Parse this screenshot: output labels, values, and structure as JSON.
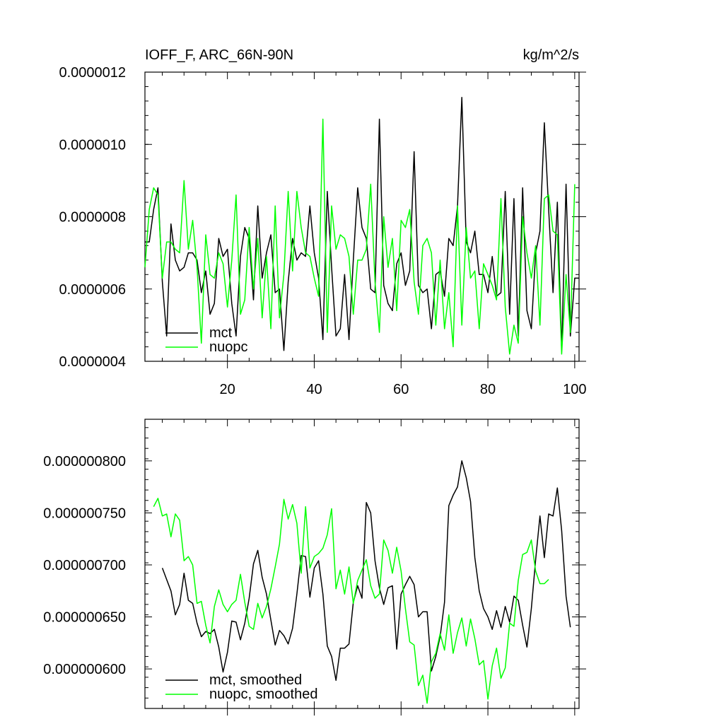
{
  "chart_data": [
    {
      "type": "line",
      "title": "IOFF_F, ARC_66N-90N",
      "units": "kg/m^2/s",
      "xlim": [
        1,
        101
      ],
      "ylim": [
        4e-07,
        1.2e-06
      ],
      "xticks": [
        20,
        40,
        60,
        80,
        100
      ],
      "yticks": [
        4e-07,
        6e-07,
        8e-07,
        1e-06,
        1.2e-06
      ],
      "ytick_labels": [
        "0.0000004",
        "0.0000006",
        "0.0000008",
        "0.0000010",
        "0.0000012"
      ],
      "xtick_labels": [
        "20",
        "40",
        "60",
        "80",
        "100"
      ],
      "legend": "bottom-left",
      "series": [
        {
          "name": "mct",
          "color": "#000000",
          "x_start": 1,
          "values": [
            7.3e-07,
            7.3e-07,
            8.2e-07,
            8.8e-07,
            6.2e-07,
            4.7e-07,
            7.8e-07,
            6.8e-07,
            6.5e-07,
            6.6e-07,
            7e-07,
            7e-07,
            6.8e-07,
            5.9e-07,
            6.5e-07,
            5.3e-07,
            5.6e-07,
            7.4e-07,
            6.9e-07,
            7.1e-07,
            5.6e-07,
            4.7e-07,
            6.9e-07,
            7.7e-07,
            7.4e-07,
            5.7e-07,
            8.3e-07,
            6.3e-07,
            7e-07,
            7.5e-07,
            5.9e-07,
            6e-07,
            4.3e-07,
            6.2e-07,
            7.4e-07,
            6.8e-07,
            7e-07,
            6.9e-07,
            8.3e-07,
            7e-07,
            6.3e-07,
            4.6e-07,
            8.7e-07,
            6.6e-07,
            4.7e-07,
            4.9e-07,
            6.4e-07,
            4.6e-07,
            6.8e-07,
            8.8e-07,
            7.7e-07,
            7.4e-07,
            6e-07,
            5.9e-07,
            1.07e-06,
            6.1e-07,
            5.6e-07,
            5.4e-07,
            6.7e-07,
            7e-07,
            6.1e-07,
            6.5e-07,
            9.8e-07,
            6.1e-07,
            5.9e-07,
            6e-07,
            4.9e-07,
            6.4e-07,
            6.5e-07,
            5.8e-07,
            7.4e-07,
            7.2e-07,
            8.3e-07,
            1.13e-06,
            7.3e-07,
            7e-07,
            7.6e-07,
            6.4e-07,
            6.4e-07,
            5.9e-07,
            6.9e-07,
            5.8e-07,
            5.9e-07,
            8.7e-07,
            5.3e-07,
            8.5e-07,
            4.7e-07,
            8.8e-07,
            5.4e-07,
            4.9e-07,
            7e-07,
            7.6e-07,
            1.06e-06,
            8.2e-07,
            5.9e-07,
            8.4e-07,
            4.3e-07,
            8.9e-07,
            4.7e-07,
            6.3e-07,
            6.3e-07
          ]
        },
        {
          "name": "nuopc",
          "color": "#00ff00",
          "x_start": 1,
          "values": [
            6.6e-07,
            8.2e-07,
            8.8e-07,
            8.6e-07,
            6.3e-07,
            7.3e-07,
            7.3e-07,
            7.1e-07,
            7e-07,
            9e-07,
            7.1e-07,
            7.9e-07,
            6.6e-07,
            4.5e-07,
            7.5e-07,
            6.4e-07,
            6.3e-07,
            7e-07,
            6.7e-07,
            5.5e-07,
            6.8e-07,
            8.6e-07,
            5.3e-07,
            5.7e-07,
            7.7e-07,
            6e-07,
            7.4e-07,
            5.2e-07,
            6.9e-07,
            4.9e-07,
            8.3e-07,
            5.2e-07,
            6.4e-07,
            8.7e-07,
            6.5e-07,
            8.7e-07,
            7.7e-07,
            7e-07,
            6.9e-07,
            6.3e-07,
            5.8e-07,
            1.07e-06,
            4.8e-07,
            8.3e-07,
            7.1e-07,
            7.5e-07,
            7.4e-07,
            6.9e-07,
            5.3e-07,
            6.8e-07,
            6.8e-07,
            7.1e-07,
            8.9e-07,
            6.2e-07,
            4.8e-07,
            8e-07,
            6.6e-07,
            7.4e-07,
            5.4e-07,
            7.9e-07,
            7.7e-07,
            8.2e-07,
            6.2e-07,
            5.3e-07,
            7.2e-07,
            7.4e-07,
            7e-07,
            5e-07,
            6.8e-07,
            4.9e-07,
            5.9e-07,
            4.4e-07,
            8.3e-07,
            5e-07,
            7.7e-07,
            6.3e-07,
            6.5e-07,
            4.9e-07,
            6.7e-07,
            6.4e-07,
            6.1e-07,
            5.7e-07,
            8.5e-07,
            5.5e-07,
            4.2e-07,
            5e-07,
            4.5e-07,
            8e-07,
            7e-07,
            6.3e-07,
            7.2e-07,
            5e-07,
            8.5e-07,
            8.6e-07,
            7.6e-07,
            7.5e-07,
            4.2e-07,
            6.4e-07,
            4.8e-07,
            8.9e-07
          ]
        }
      ]
    },
    {
      "type": "line",
      "xlim": [
        1,
        101
      ],
      "ylim": [
        5.62e-07,
        8.4e-07
      ],
      "xticks": [
        20,
        40,
        60,
        80,
        100
      ],
      "yticks": [
        6e-07,
        6.5e-07,
        7e-07,
        7.5e-07,
        8e-07
      ],
      "ytick_labels": [
        "0.000000600",
        "0.000000650",
        "0.000000700",
        "0.000000750",
        "0.000000800"
      ],
      "legend": "bottom-left",
      "series": [
        {
          "name": "mct, smoothed",
          "color": "#000000",
          "x_start": 5,
          "values": [
            6.97e-07,
            6.86e-07,
            6.75e-07,
            6.52e-07,
            6.62e-07,
            6.92e-07,
            6.66e-07,
            6.63e-07,
            6.44e-07,
            6.31e-07,
            6.36e-07,
            6.34e-07,
            6.38e-07,
            6.21e-07,
            5.97e-07,
            6.16e-07,
            6.46e-07,
            6.45e-07,
            6.28e-07,
            6.44e-07,
            6.68e-07,
            7.01e-07,
            7.14e-07,
            6.88e-07,
            6.72e-07,
            6.47e-07,
            6.23e-07,
            6.37e-07,
            6.32e-07,
            6.24e-07,
            6.39e-07,
            6.72e-07,
            7.09e-07,
            7.08e-07,
            6.69e-07,
            6.97e-07,
            7.04e-07,
            6.72e-07,
            6.22e-07,
            6.12e-07,
            5.89e-07,
            6.2e-07,
            6.2e-07,
            6.24e-07,
            6.64e-07,
            6.8e-07,
            6.68e-07,
            7.6e-07,
            7.5e-07,
            7.04e-07,
            6.78e-07,
            6.62e-07,
            6.78e-07,
            6.8e-07,
            6.19e-07,
            6.72e-07,
            6.81e-07,
            6.89e-07,
            6.81e-07,
            6.5e-07,
            6.55e-07,
            6.55e-07,
            5.98e-07,
            6.12e-07,
            6.31e-07,
            6.64e-07,
            7.57e-07,
            7.67e-07,
            7.75e-07,
            8e-07,
            7.84e-07,
            7.61e-07,
            7.07e-07,
            6.75e-07,
            6.58e-07,
            6.5e-07,
            6.38e-07,
            6.56e-07,
            6.4e-07,
            6.6e-07,
            6.45e-07,
            6.7e-07,
            6.66e-07,
            6.42e-07,
            6.21e-07,
            6.58e-07,
            7.05e-07,
            7.47e-07,
            7.07e-07,
            7.49e-07,
            7.47e-07,
            7.74e-07,
            7.33e-07,
            6.7e-07,
            6.4e-07
          ]
        },
        {
          "name": "nuopc, smoothed",
          "color": "#00ff00",
          "x_start": 3,
          "values": [
            7.56e-07,
            7.64e-07,
            7.47e-07,
            7.49e-07,
            7.27e-07,
            7.49e-07,
            7.43e-07,
            7.04e-07,
            7.08e-07,
            7e-07,
            6.63e-07,
            6.65e-07,
            6.42e-07,
            6.25e-07,
            6.6e-07,
            6.76e-07,
            6.62e-07,
            6.55e-07,
            6.62e-07,
            6.66e-07,
            6.91e-07,
            6.64e-07,
            6.41e-07,
            6.38e-07,
            6.63e-07,
            6.49e-07,
            6.6e-07,
            6.77e-07,
            6.98e-07,
            7.2e-07,
            7.63e-07,
            7.44e-07,
            7.58e-07,
            7.4e-07,
            6.92e-07,
            7.56e-07,
            6.97e-07,
            7.08e-07,
            7.11e-07,
            7.16e-07,
            7.29e-07,
            7.54e-07,
            6.77e-07,
            6.95e-07,
            6.72e-07,
            6.98e-07,
            6.63e-07,
            6.85e-07,
            6.95e-07,
            7.05e-07,
            6.8e-07,
            6.68e-07,
            6.72e-07,
            7.24e-07,
            7.14e-07,
            6.92e-07,
            7.17e-07,
            6.94e-07,
            6.58e-07,
            6.26e-07,
            6.23e-07,
            5.84e-07,
            5.94e-07,
            5.67e-07,
            6.07e-07,
            6.15e-07,
            6.34e-07,
            6.18e-07,
            6.52e-07,
            6.15e-07,
            6.35e-07,
            6.49e-07,
            6.22e-07,
            6.48e-07,
            6.29e-07,
            6.04e-07,
            6.08e-07,
            5.71e-07,
            6.03e-07,
            6.2e-07,
            5.91e-07,
            6.01e-07,
            6.44e-07,
            6.41e-07,
            6.85e-07,
            7.1e-07,
            7.12e-07,
            7.24e-07,
            6.94e-07,
            6.82e-07,
            6.82e-07,
            6.86e-07
          ]
        }
      ]
    }
  ]
}
